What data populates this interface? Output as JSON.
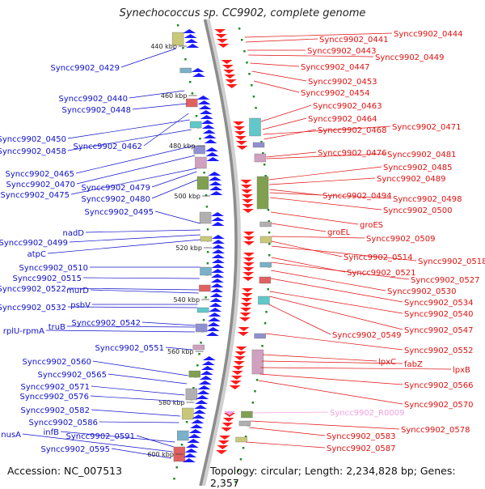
{
  "title": "Synechococcus sp. CC9902, complete genome",
  "footer": {
    "accession": "Accession: NC_007513",
    "summary": "Topology: circular; Length: 2,234,828 bp; Genes: 2,357"
  },
  "colors": {
    "backbone": "#8c8c8c",
    "forward_gene": "#1a1aff",
    "reverse_gene": "#ff1a1a",
    "left_label": "#1010c8",
    "right_label": "#e01010",
    "rna_label": "#f0a0e0",
    "tick": "#1e8c1e"
  },
  "scale_marks": [
    "440 kbp",
    "460 kbp",
    "480 kbp",
    "500 kbp",
    "520 kbp",
    "540 kbp",
    "560 kbp",
    "580 kbp",
    "600 kbp"
  ],
  "left_labels": [
    "Syncc9902_0429",
    "Syncc9902_0440",
    "Syncc9902_0448",
    "Syncc9902_0450",
    "Syncc9902_0462",
    "Syncc9902_0458",
    "Syncc9902_0465",
    "Syncc9902_0479",
    "Syncc9902_0470",
    "Syncc9902_0475",
    "Syncc9902_0480",
    "Syncc9902_0495",
    "nadD",
    "Syncc9902_0499",
    "atpC",
    "Syncc9902_0510",
    "Syncc9902_0515",
    "Syncc9902_0522",
    "murD",
    "Syncc9902_0532",
    "psbV",
    "truB",
    "Syncc9902_0542",
    "rplU-rpmA",
    "Syncc9902_0551",
    "Syncc9902_0560",
    "Syncc9902_0565",
    "Syncc9902_0571",
    "Syncc9902_0576",
    "Syncc9902_0582",
    "Syncc9902_0586",
    "infB",
    "nusA",
    "Syncc9902_0591",
    "Syncc9902_0595"
  ],
  "right_labels": [
    "Syncc9902_0444",
    "Syncc9902_0441",
    "Syncc9902_0443",
    "Syncc9902_0449",
    "Syncc9902_0447",
    "Syncc9902_0453",
    "Syncc9902_0454",
    "Syncc9902_0463",
    "Syncc9902_0464",
    "Syncc9902_0471",
    "Syncc9902_0468",
    "Syncc9902_0476",
    "Syncc9902_0481",
    "Syncc9902_0485",
    "Syncc9902_0489",
    "Syncc9902_0494",
    "Syncc9902_0498",
    "Syncc9902_0500",
    "groES",
    "groEL",
    "Syncc9902_0509",
    "Syncc9902_0514",
    "Syncc9902_0518",
    "Syncc9902_0521",
    "Syncc9902_0527",
    "Syncc9902_0530",
    "Syncc9902_0534",
    "Syncc9902_0540",
    "Syncc9902_0547",
    "Syncc9902_0549",
    "Syncc9902_0552",
    "lpxC",
    "fabZ",
    "lpxB",
    "Syncc9902_0566",
    "Syncc9902_0570",
    "Syncc9902_R0009",
    "Syncc9902_0578",
    "Syncc9902_0583",
    "Syncc9902_0587"
  ]
}
